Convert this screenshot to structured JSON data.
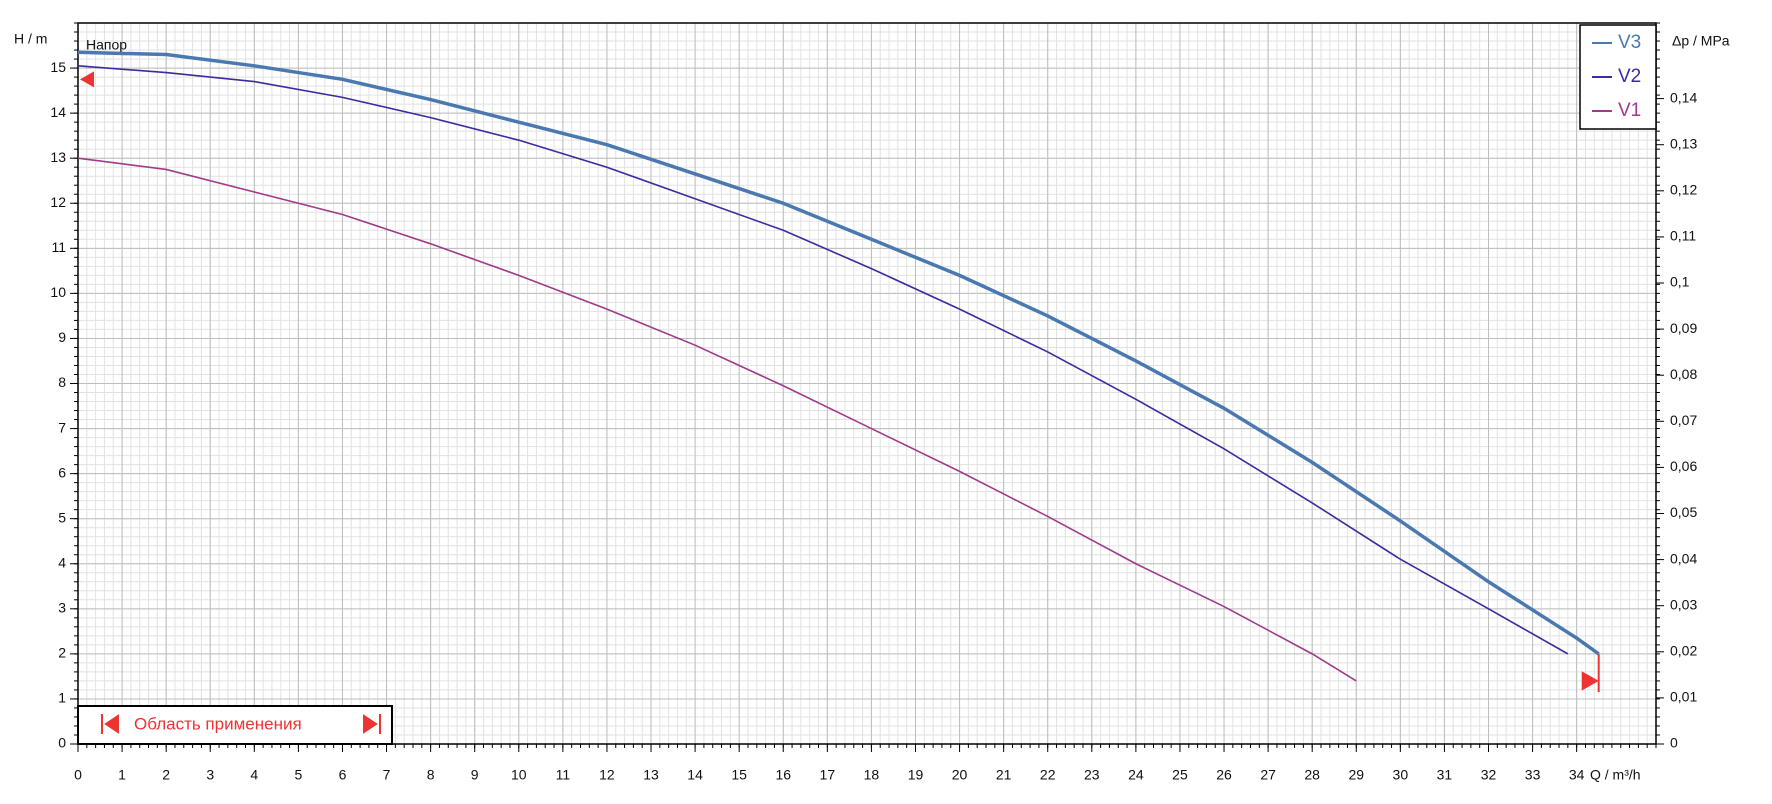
{
  "chart_data": {
    "type": "line",
    "y_label": "H / m",
    "x_label": "Q / m³/h",
    "y2_label": "Δp / MPa",
    "annotation": "Напор",
    "range_label": "Область применения",
    "xlim": [
      0,
      35.8
    ],
    "ylim": [
      0,
      16
    ],
    "y2lim": [
      0,
      0.1564
    ],
    "xticks": [
      0,
      1,
      2,
      3,
      4,
      5,
      6,
      7,
      8,
      9,
      10,
      11,
      12,
      13,
      14,
      15,
      16,
      17,
      18,
      19,
      20,
      21,
      22,
      23,
      24,
      25,
      26,
      27,
      28,
      29,
      30,
      31,
      32,
      33,
      34
    ],
    "yticks": [
      0,
      1,
      2,
      3,
      4,
      5,
      6,
      7,
      8,
      9,
      10,
      11,
      12,
      13,
      14,
      15
    ],
    "y2ticks": [
      0,
      {
        "value": 0.01,
        "label": "0,01"
      },
      {
        "value": 0.02,
        "label": "0,02"
      },
      {
        "value": 0.03,
        "label": "0,03"
      },
      {
        "value": 0.04,
        "label": "0,04"
      },
      {
        "value": 0.05,
        "label": "0,05"
      },
      {
        "value": 0.06,
        "label": "0,06"
      },
      {
        "value": 0.07,
        "label": "0,07"
      },
      {
        "value": 0.08,
        "label": "0,08"
      },
      {
        "value": 0.09,
        "label": "0,09"
      },
      {
        "value": 0.1,
        "label": "0,1"
      },
      {
        "value": 0.11,
        "label": "0,11"
      },
      {
        "value": 0.12,
        "label": "0,12"
      },
      {
        "value": 0.13,
        "label": "0,13"
      },
      {
        "value": 0.14,
        "label": "0,14"
      }
    ],
    "grid": true,
    "legend": "upper right",
    "series": [
      {
        "name": "V3",
        "color": "#4a78b0",
        "x": [
          0,
          2,
          4,
          6,
          8,
          10,
          12,
          14,
          16,
          18,
          20,
          22,
          24,
          26,
          28,
          30,
          32,
          34,
          34.5
        ],
        "values": [
          15.35,
          15.3,
          15.05,
          14.75,
          14.3,
          13.8,
          13.3,
          12.65,
          12.0,
          11.2,
          10.4,
          9.5,
          8.5,
          7.45,
          6.25,
          4.95,
          3.6,
          2.35,
          2.0
        ]
      },
      {
        "name": "V2",
        "color": "#3a2ca0",
        "x": [
          0,
          2,
          4,
          6,
          8,
          10,
          12,
          14,
          16,
          18,
          20,
          22,
          24,
          26,
          28,
          30,
          32,
          33.8
        ],
        "values": [
          15.05,
          14.9,
          14.7,
          14.35,
          13.9,
          13.4,
          12.8,
          12.1,
          11.4,
          10.55,
          9.65,
          8.7,
          7.65,
          6.55,
          5.35,
          4.1,
          3.0,
          2.0
        ]
      },
      {
        "name": "V1",
        "color": "#a03a8a",
        "x": [
          0,
          2,
          4,
          6,
          8,
          10,
          12,
          14,
          16,
          18,
          20,
          22,
          24,
          26,
          28,
          29
        ],
        "values": [
          13.0,
          12.75,
          12.25,
          11.75,
          11.1,
          10.4,
          9.65,
          8.85,
          7.95,
          7.0,
          6.05,
          5.05,
          4.0,
          3.05,
          2.0,
          1.4
        ]
      }
    ]
  }
}
